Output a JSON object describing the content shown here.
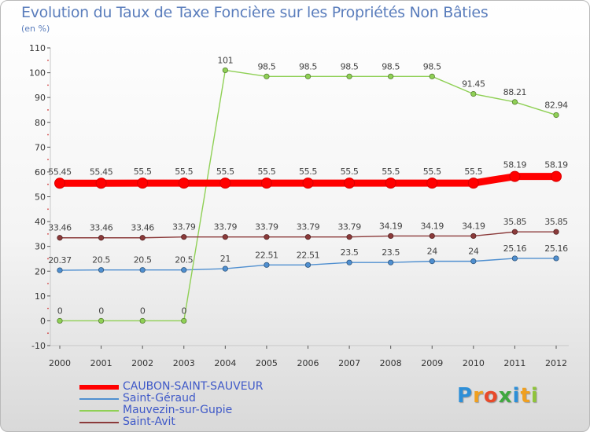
{
  "title": "Evolution du Taux de Taxe Foncière sur les Propriétés Non Bâties",
  "subtitle": "(en %)",
  "logo": {
    "text": "Proxiti",
    "letters": [
      "P",
      "r",
      "o",
      "x",
      "i",
      "t",
      "i"
    ],
    "colors": [
      "#2d8fd8",
      "#f0a020",
      "#e84a2a",
      "#3fa83f",
      "#2d8fd8",
      "#f0a020",
      "#8fc43a"
    ]
  },
  "chart_data": {
    "type": "line",
    "title": "Evolution du Taux de Taxe Foncière sur les Propriétés Non Bâties",
    "ylabel": "(en %)",
    "xlabel": "",
    "x": [
      "2000",
      "2001",
      "2002",
      "2003",
      "2004",
      "2005",
      "2006",
      "2007",
      "2008",
      "2009",
      "2010",
      "2011",
      "2012"
    ],
    "ylim": [
      -10,
      110
    ],
    "yticks": [
      -10,
      0,
      10,
      20,
      30,
      40,
      50,
      60,
      70,
      80,
      90,
      100,
      110
    ],
    "grid": false,
    "legend_position": "bottom-left",
    "series": [
      {
        "name": "CAUBON-SAINT-SAUVEUR",
        "color": "#ff0000",
        "emphasis": true,
        "values": [
          55.45,
          55.45,
          55.5,
          55.5,
          55.5,
          55.5,
          55.5,
          55.5,
          55.5,
          55.5,
          55.5,
          58.19,
          58.19
        ],
        "labels": [
          "55.45",
          "55.45",
          "55.5",
          "55.5",
          "55.5",
          "55.5",
          "55.5",
          "55.5",
          "55.5",
          "55.5",
          "55.5",
          "58.19",
          "58.19"
        ]
      },
      {
        "name": "Saint-Géraud",
        "color": "#4f8fd0",
        "emphasis": false,
        "values": [
          20.37,
          20.5,
          20.5,
          20.5,
          21,
          22.51,
          22.51,
          23.5,
          23.5,
          24,
          24,
          25.16,
          25.16
        ],
        "labels": [
          "20.37",
          "20.5",
          "20.5",
          "20.5",
          "21",
          "22.51",
          "22.51",
          "23.5",
          "23.5",
          "24",
          "24",
          "25.16",
          "25.16"
        ]
      },
      {
        "name": "Mauvezin-sur-Gupie",
        "color": "#8fd055",
        "emphasis": false,
        "values": [
          0,
          0,
          0,
          0,
          101,
          98.5,
          98.5,
          98.5,
          98.5,
          98.5,
          91.45,
          88.21,
          82.94
        ],
        "labels": [
          "0",
          "0",
          "0",
          "0",
          "101",
          "98.5",
          "98.5",
          "98.5",
          "98.5",
          "98.5",
          "91.45",
          "88.21",
          "82.94"
        ]
      },
      {
        "name": "Saint-Avit",
        "color": "#8b3a3a",
        "emphasis": false,
        "values": [
          33.46,
          33.46,
          33.46,
          33.79,
          33.79,
          33.79,
          33.79,
          33.79,
          34.19,
          34.19,
          34.19,
          35.85,
          35.85
        ],
        "labels": [
          "33.46",
          "33.46",
          "33.46",
          "33.79",
          "33.79",
          "33.79",
          "33.79",
          "33.79",
          "34.19",
          "34.19",
          "34.19",
          "35.85",
          "35.85"
        ]
      }
    ]
  }
}
